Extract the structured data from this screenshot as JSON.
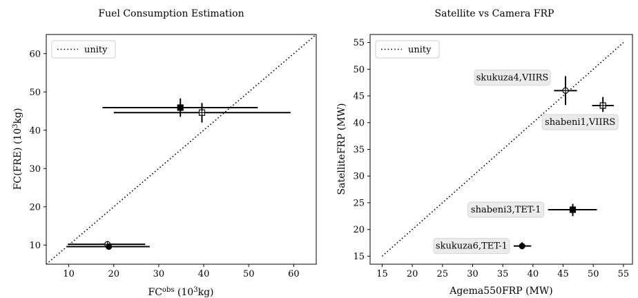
{
  "chart_data": [
    {
      "type": "scatter",
      "title": "Fuel Consumption Estimation",
      "xlabel": "FC",
      "xlabel_sup": "obs",
      "xlabel_unit_pre": " (10",
      "xlabel_unit_sup": "3",
      "xlabel_unit_post": "kg)",
      "ylabel": "FC(FRE) (10",
      "ylabel_sup": "3",
      "ylabel_post": "kg)",
      "xlim": [
        5,
        65
      ],
      "ylim": [
        5,
        65
      ],
      "xticks": [
        10,
        20,
        30,
        40,
        50,
        60
      ],
      "yticks": [
        10,
        20,
        30,
        40,
        50,
        60
      ],
      "grid": false,
      "legend": {
        "placement": "top-left",
        "entries": [
          {
            "label": "unity",
            "style": "dotted"
          }
        ]
      },
      "unity_line": [
        [
          5,
          5
        ],
        [
          65,
          65
        ]
      ],
      "points": [
        {
          "x": 34.8,
          "y": 45.9,
          "xerr": [
            17.5,
            52.0
          ],
          "yerr": [
            43.5,
            48.3
          ],
          "marker": "square-filled"
        },
        {
          "x": 39.6,
          "y": 44.6,
          "xerr": [
            20.0,
            59.3
          ],
          "yerr": [
            42.0,
            47.1
          ],
          "marker": "square-open"
        },
        {
          "x": 18.6,
          "y": 10.2,
          "xerr": [
            9.8,
            27.0
          ],
          "yerr": [
            9.8,
            10.6
          ],
          "marker": "circle-open"
        },
        {
          "x": 18.9,
          "y": 9.6,
          "xerr": [
            9.5,
            28.0
          ],
          "yerr": [
            9.2,
            10.0
          ],
          "marker": "circle-filled"
        }
      ]
    },
    {
      "type": "scatter",
      "title": "Satellite vs Camera FRP",
      "xlabel": "Agema550FRP (MW)",
      "ylabel": "SatelliteFRP (MW)",
      "xlim": [
        13,
        56.5
      ],
      "ylim": [
        13.5,
        56.5
      ],
      "xticks": [
        15,
        20,
        25,
        30,
        35,
        40,
        45,
        50,
        55
      ],
      "yticks": [
        15,
        20,
        25,
        30,
        35,
        40,
        45,
        50,
        55
      ],
      "grid": false,
      "legend": {
        "placement": "top-left",
        "entries": [
          {
            "label": "unity",
            "style": "dotted"
          }
        ]
      },
      "unity_line": [
        [
          15,
          15
        ],
        [
          55,
          55
        ]
      ],
      "points": [
        {
          "x": 45.4,
          "y": 46.0,
          "xerr": [
            43.5,
            47.3
          ],
          "yerr": [
            43.3,
            48.7
          ],
          "marker": "circle-open",
          "label": "skukuza4,VIIRS",
          "label_side": "left"
        },
        {
          "x": 51.6,
          "y": 43.2,
          "xerr": [
            49.8,
            53.4
          ],
          "yerr": [
            42.0,
            44.8
          ],
          "marker": "square-open",
          "label": "shabeni1,VIIRS",
          "label_side": "below-left"
        },
        {
          "x": 46.6,
          "y": 23.7,
          "xerr": [
            42.5,
            50.6
          ],
          "yerr": [
            22.5,
            24.8
          ],
          "marker": "square-filled",
          "label": "shabeni3,TET-1",
          "label_side": "left"
        },
        {
          "x": 38.2,
          "y": 16.9,
          "xerr": [
            36.8,
            39.7
          ],
          "yerr": [
            16.3,
            17.6
          ],
          "marker": "circle-filled",
          "label": "skukuza6,TET-1",
          "label_side": "left"
        }
      ]
    }
  ]
}
